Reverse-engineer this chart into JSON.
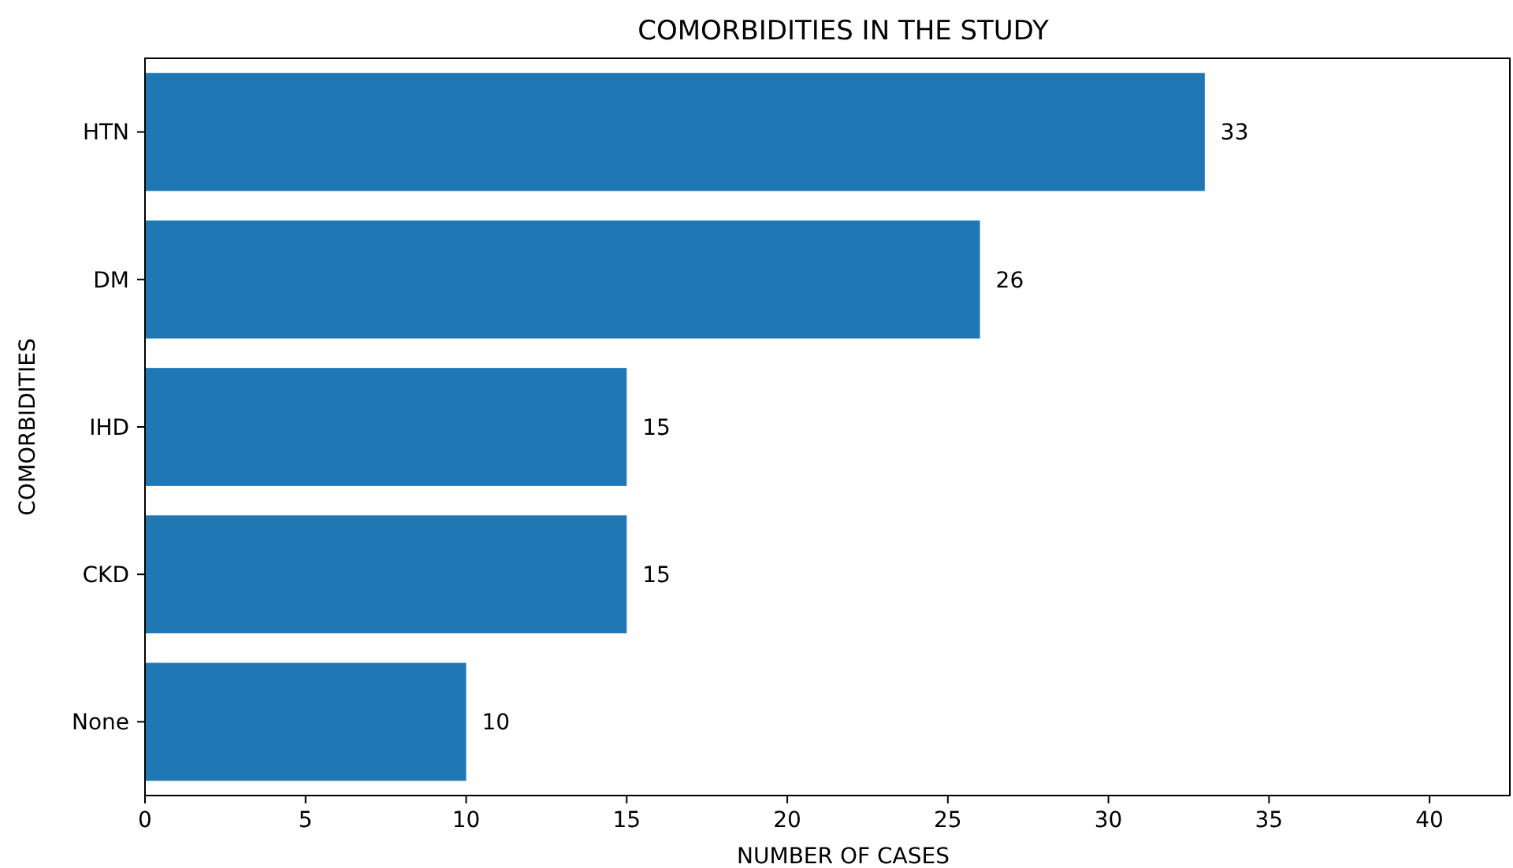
{
  "chart_data": {
    "type": "bar",
    "orientation": "horizontal",
    "title": "COMORBIDITIES IN THE STUDY",
    "xlabel": "NUMBER OF CASES",
    "ylabel": "COMORBIDITIES",
    "categories": [
      "HTN",
      "DM",
      "IHD",
      "CKD",
      "None"
    ],
    "values": [
      33,
      26,
      15,
      15,
      10
    ],
    "color": "#1f77b4",
    "data_labels": true,
    "xlim": [
      0,
      42.5
    ],
    "xticks": [
      0,
      5,
      10,
      15,
      20,
      25,
      30,
      35,
      40
    ]
  }
}
